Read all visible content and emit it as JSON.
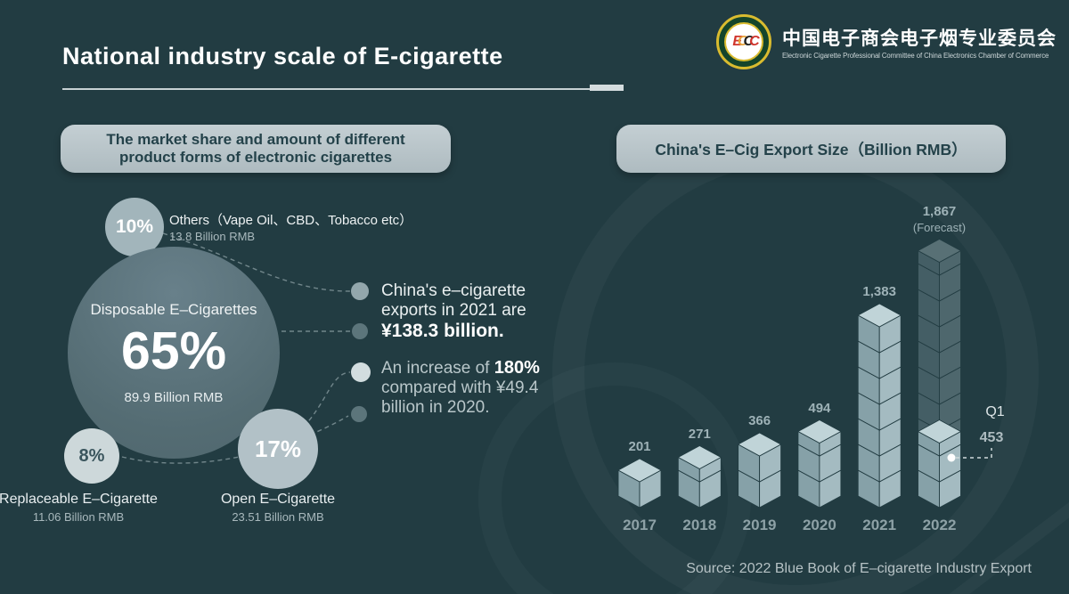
{
  "header": {
    "title": "National industry scale of E-cigarette",
    "logo": {
      "badge_letters": "ECCC",
      "org_cn": "中国电子商会电子烟专业委员会",
      "org_en": "Electronic Cigarette Professional Committee of China Electronics Chamber of Commerce"
    }
  },
  "market_share": {
    "pill": "The market share and amount of different\nproduct forms of electronic cigarettes",
    "bubbles": {
      "others": {
        "pct": "10%",
        "label": "Others（Vape Oil、CBD、Tobacco etc）",
        "amount": "13.8 Billion RMB"
      },
      "disposable": {
        "pct": "65%",
        "label": "Disposable E–Cigarettes",
        "amount": "89.9 Billion RMB"
      },
      "replaceable": {
        "pct": "8%",
        "label": "Replaceable E–Cigarette",
        "amount": "11.06 Billion RMB"
      },
      "open": {
        "pct": "17%",
        "label": "Open E–Cigarette",
        "amount": "23.51 Billion RMB"
      }
    },
    "callout_exports": {
      "line1": "China's e–cigarette",
      "line2": "exports in 2021 are",
      "highlight": "¥138.3 billion."
    },
    "callout_increase": {
      "pre": "An increase of ",
      "highlight": "180%",
      "line2": "compared with ¥49.4",
      "line3": "billion in 2020."
    }
  },
  "export_chart": {
    "pill": "China's E–Cig Export Size（Billion RMB）"
  },
  "chart_data": [
    {
      "type": "pie",
      "title": "The market share and amount of different product forms of electronic cigarettes",
      "slices": [
        {
          "label": "Disposable E–Cigarettes",
          "share_pct": 65,
          "amount_billion_rmb": 89.9
        },
        {
          "label": "Open E–Cigarette",
          "share_pct": 17,
          "amount_billion_rmb": 23.51
        },
        {
          "label": "Others（Vape Oil、CBD、Tobacco etc）",
          "share_pct": 10,
          "amount_billion_rmb": 13.8
        },
        {
          "label": "Replaceable E–Cigarette",
          "share_pct": 8,
          "amount_billion_rmb": 11.06
        }
      ]
    },
    {
      "type": "bar",
      "title": "China's E–Cig Export Size（Billion RMB）",
      "categories": [
        "2017",
        "2018",
        "2019",
        "2020",
        "2021",
        "2022"
      ],
      "values": [
        201,
        271,
        366,
        494,
        1383,
        1867
      ],
      "value_labels": [
        "201",
        "271",
        "366",
        "494",
        "1,383",
        "1,867"
      ],
      "forecast_note": "(Forecast)",
      "forecast_index": 5,
      "q1": {
        "label": "Q1",
        "value": 453,
        "value_label": "453",
        "applies_to": "2022"
      }
    }
  ],
  "source": "Source: 2022 Blue Book of E–cigarette Industry Export",
  "colors": {
    "background": "#223C42",
    "pill_bg": "#BCC8CC",
    "pill_text": "#24424A",
    "cube_top": "#C0D4D8",
    "cube_left": "#86A1A8",
    "cube_right": "#A4BBC1",
    "bubble_light": "#CDD8DA",
    "bubble_mid": "#A2B5BB",
    "bubble_large": "#5B7279",
    "label_muted": "#9EB2B7",
    "dot_dark": "#5C757B",
    "dot_mid": "#93A7AC",
    "dot_light": "#D2DDDF"
  }
}
